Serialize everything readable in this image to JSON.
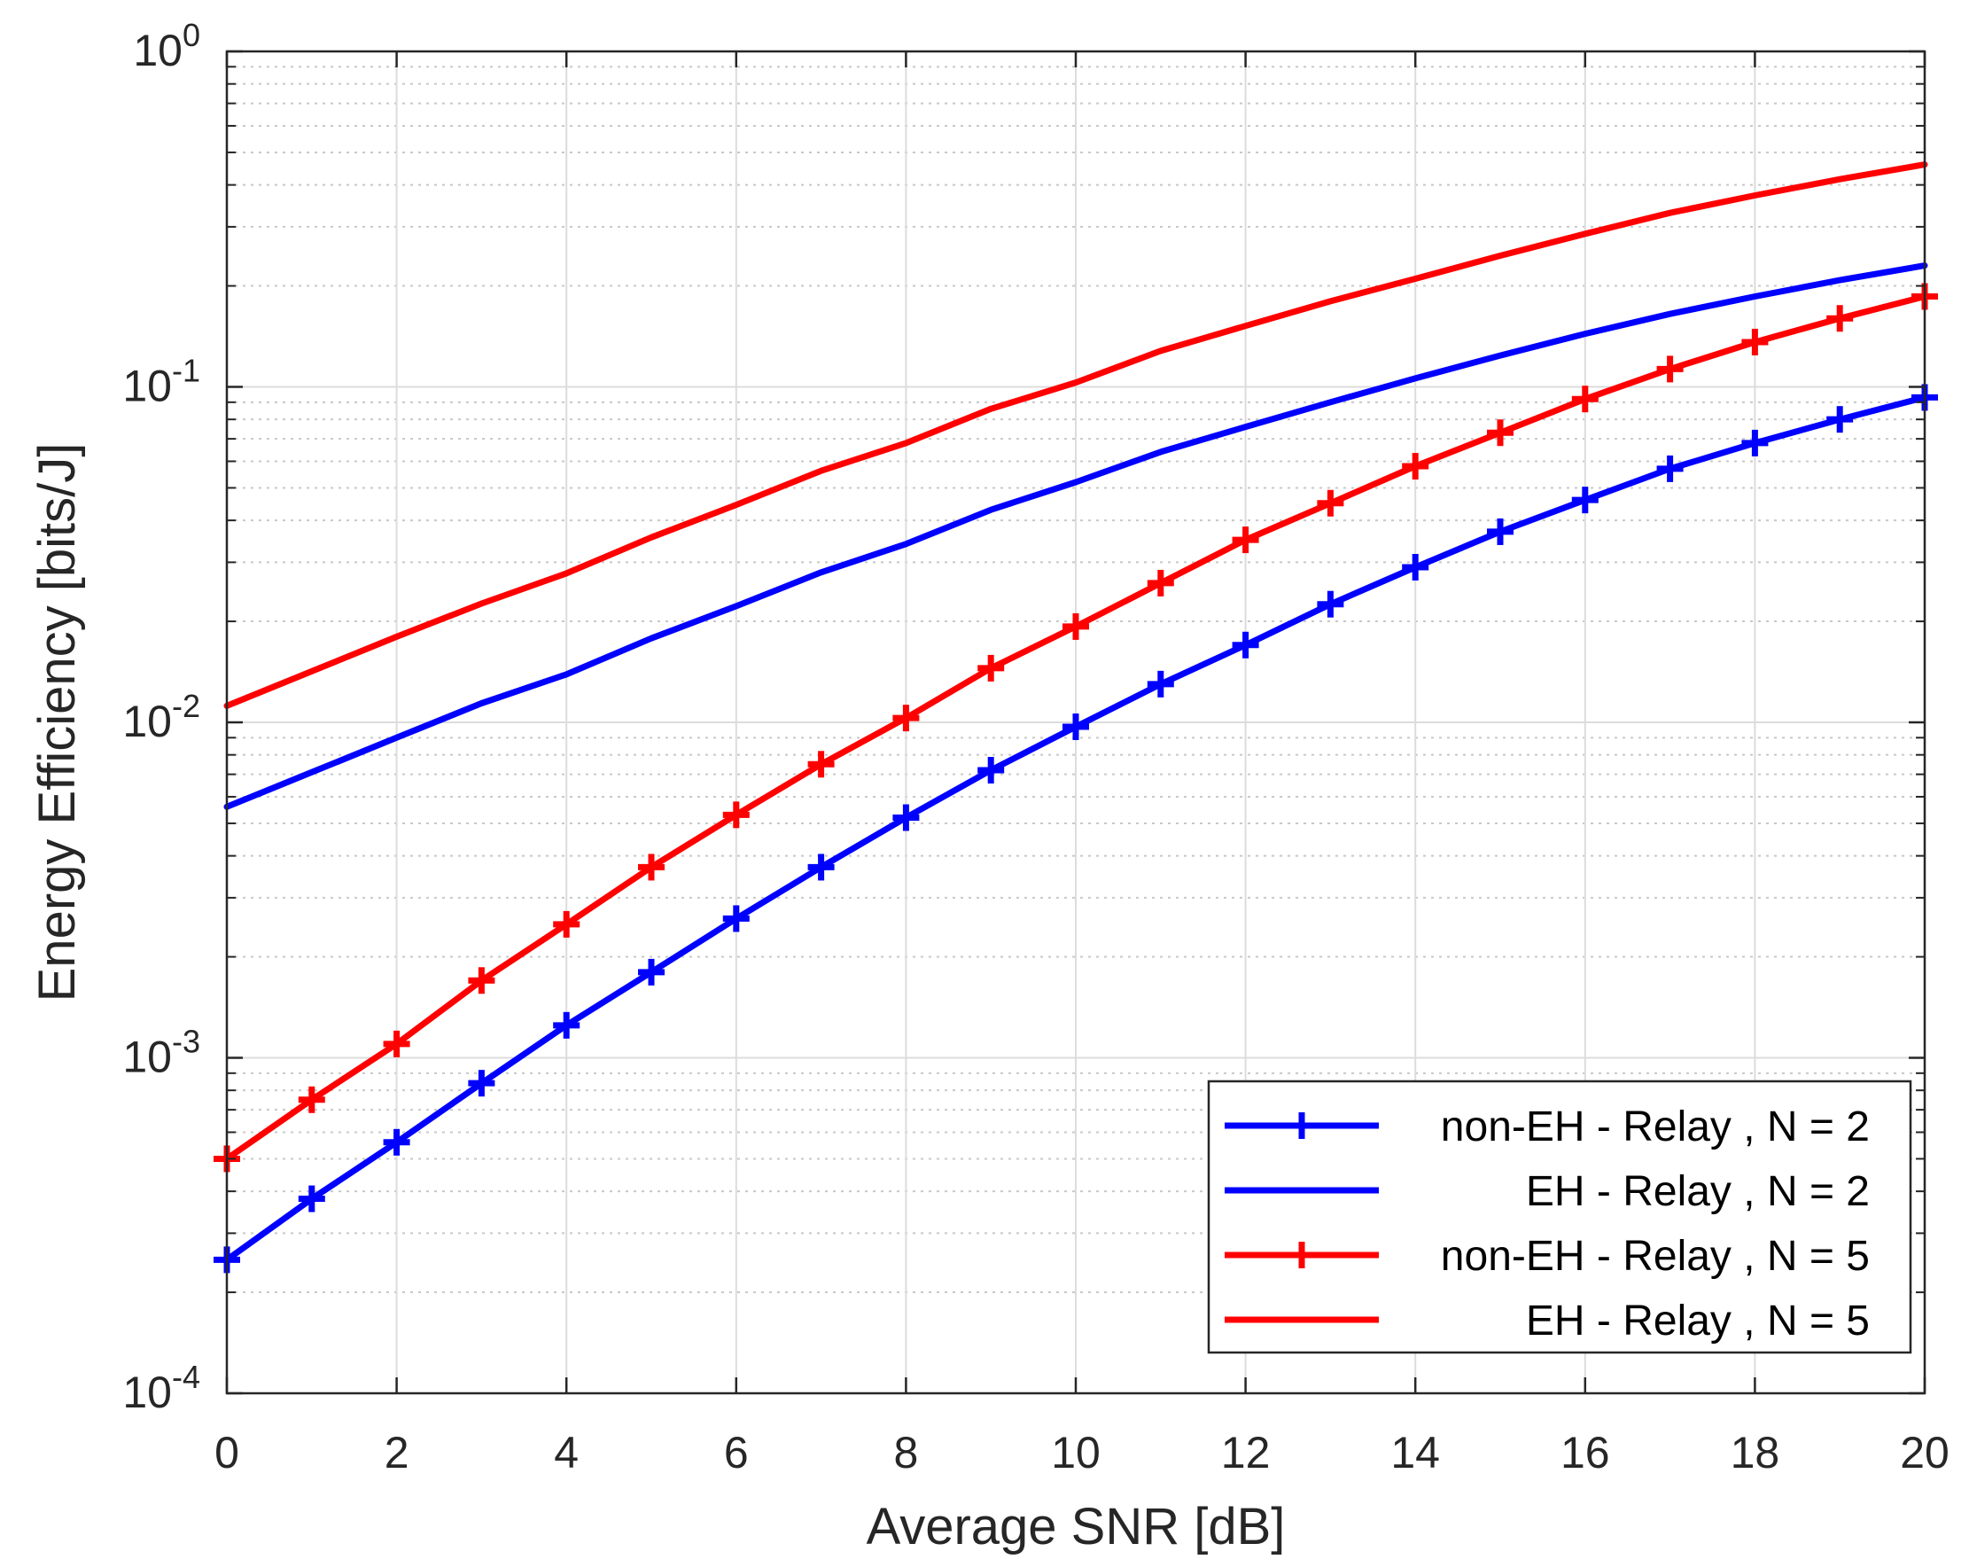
{
  "chart_data": {
    "type": "line",
    "title": "",
    "xlabel": "Average SNR [dB]",
    "ylabel": "Energy Efficiency [bits/J]",
    "xlim": [
      0,
      20
    ],
    "ylim": [
      0.0001,
      1
    ],
    "yscale": "log",
    "grid": true,
    "legend_position": "bottom-right",
    "x": [
      0,
      1,
      2,
      3,
      4,
      5,
      6,
      7,
      8,
      9,
      10,
      11,
      12,
      13,
      14,
      15,
      16,
      17,
      18,
      19,
      20
    ],
    "xticks": [
      "0",
      "2",
      "4",
      "6",
      "8",
      "10",
      "12",
      "14",
      "16",
      "18",
      "20"
    ],
    "yticks": [
      {
        "base": "10",
        "exp": "-4"
      },
      {
        "base": "10",
        "exp": "-3"
      },
      {
        "base": "10",
        "exp": "-2"
      },
      {
        "base": "10",
        "exp": "-1"
      },
      {
        "base": "10",
        "exp": "0"
      }
    ],
    "series": [
      {
        "name": "non-EH - Relay , N = 2",
        "color": "#0000ff",
        "marker": "plus",
        "values": [
          0.00025,
          0.00038,
          0.00056,
          0.00084,
          0.00125,
          0.0018,
          0.0026,
          0.0037,
          0.0052,
          0.0072,
          0.0097,
          0.013,
          0.017,
          0.0225,
          0.029,
          0.037,
          0.046,
          0.057,
          0.068,
          0.08,
          0.093
        ]
      },
      {
        "name": "EH - Relay , N = 2",
        "color": "#0000ff",
        "marker": "none",
        "values": [
          0.0056,
          0.0071,
          0.009,
          0.0114,
          0.0139,
          0.0178,
          0.0222,
          0.028,
          0.034,
          0.043,
          0.052,
          0.064,
          0.076,
          0.09,
          0.106,
          0.124,
          0.144,
          0.165,
          0.186,
          0.208,
          0.23
        ]
      },
      {
        "name": "non-EH - Relay , N = 5",
        "color": "#ff0000",
        "marker": "plus",
        "values": [
          0.0005,
          0.00075,
          0.0011,
          0.0017,
          0.0025,
          0.0037,
          0.0053,
          0.0075,
          0.0103,
          0.0145,
          0.0193,
          0.026,
          0.035,
          0.045,
          0.058,
          0.073,
          0.092,
          0.113,
          0.136,
          0.16,
          0.186
        ]
      },
      {
        "name": "EH - Relay , N = 5",
        "color": "#ff0000",
        "marker": "none",
        "values": [
          0.0112,
          0.0142,
          0.018,
          0.0226,
          0.0278,
          0.0356,
          0.0445,
          0.0562,
          0.068,
          0.086,
          0.103,
          0.128,
          0.152,
          0.18,
          0.21,
          0.246,
          0.286,
          0.33,
          0.372,
          0.416,
          0.46
        ]
      }
    ]
  }
}
